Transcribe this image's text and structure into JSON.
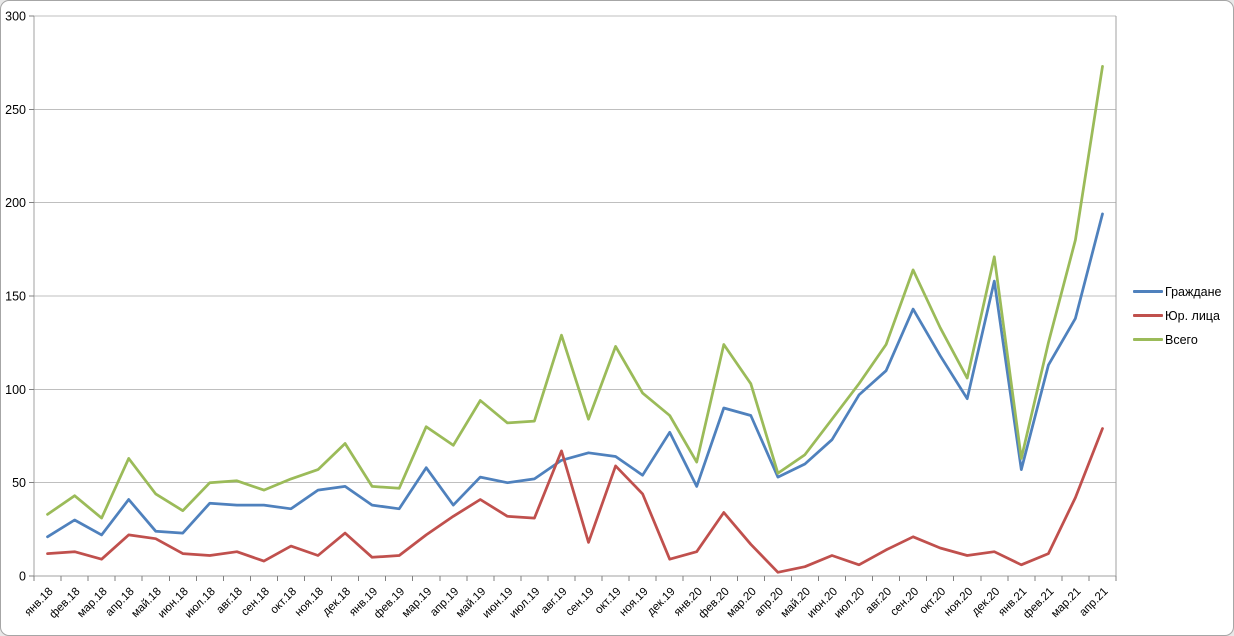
{
  "chart_data": {
    "type": "line",
    "categories": [
      "янв.18",
      "фев.18",
      "мар.18",
      "апр.18",
      "май.18",
      "июн.18",
      "июл.18",
      "авг.18",
      "сен.18",
      "окт.18",
      "ноя.18",
      "дек.18",
      "янв.19",
      "фев.19",
      "мар.19",
      "апр.19",
      "май.19",
      "июн.19",
      "июл.19",
      "авг.19",
      "сен.19",
      "окт.19",
      "ноя.19",
      "дек.19",
      "янв.20",
      "фев.20",
      "мар.20",
      "апр.20",
      "май.20",
      "июн.20",
      "июл.20",
      "авг.20",
      "сен.20",
      "окт.20",
      "ноя.20",
      "дек.20",
      "янв.21",
      "фев.21",
      "мар.21",
      "апр.21"
    ],
    "series": [
      {
        "name": "Граждане",
        "color": "#4F81BD",
        "values": [
          21,
          30,
          22,
          41,
          24,
          23,
          39,
          38,
          38,
          36,
          46,
          48,
          38,
          36,
          58,
          38,
          53,
          50,
          52,
          62,
          66,
          64,
          54,
          77,
          48,
          90,
          86,
          53,
          60,
          73,
          97,
          110,
          143,
          118,
          95,
          158,
          57,
          113,
          138,
          194
        ]
      },
      {
        "name": "Юр. лица",
        "color": "#C0504D",
        "values": [
          12,
          13,
          9,
          22,
          20,
          12,
          11,
          13,
          8,
          16,
          11,
          23,
          10,
          11,
          22,
          32,
          41,
          32,
          31,
          67,
          18,
          59,
          44,
          9,
          13,
          34,
          17,
          2,
          5,
          11,
          6,
          14,
          21,
          15,
          11,
          13,
          6,
          12,
          42,
          79
        ]
      },
      {
        "name": "Всего",
        "color": "#9BBB59",
        "values": [
          33,
          43,
          31,
          63,
          44,
          35,
          50,
          51,
          46,
          52,
          57,
          71,
          48,
          47,
          80,
          70,
          94,
          82,
          83,
          129,
          84,
          123,
          98,
          86,
          61,
          124,
          103,
          55,
          65,
          84,
          103,
          124,
          164,
          133,
          106,
          171,
          63,
          125,
          180,
          273
        ]
      }
    ],
    "title": "",
    "xlabel": "",
    "ylabel": "",
    "ylim": [
      0,
      300
    ],
    "y_ticks": [
      0,
      50,
      100,
      150,
      200,
      250,
      300
    ],
    "grid": "horizontal",
    "legend_position": "right",
    "x_label_rotation": -45
  },
  "style_colors": {
    "background": "#FFFFFF",
    "gridline": "#BFBFBF",
    "axis": "#A0A0A0",
    "tick": "#808080",
    "label_text": "#000000",
    "frame_border": "#A6A6A6"
  }
}
